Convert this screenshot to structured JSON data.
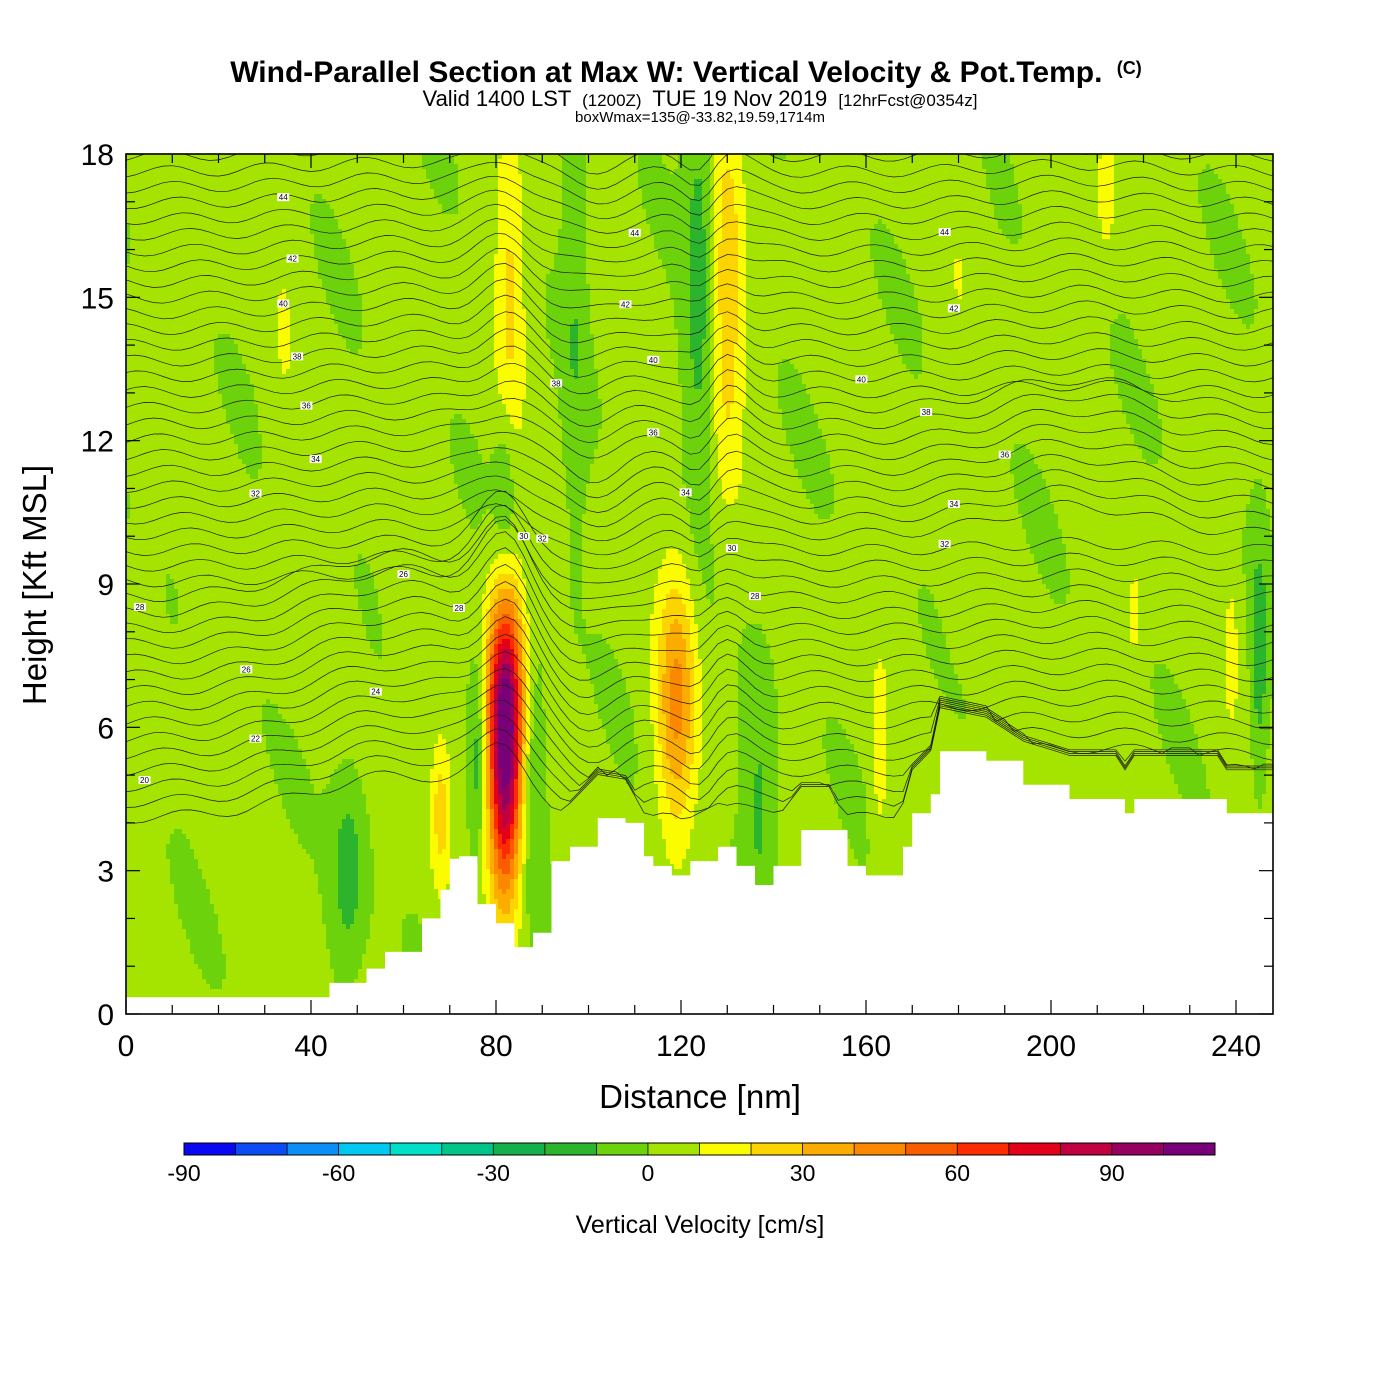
{
  "chart_data": {
    "type": "heatmap",
    "title": "Wind-Parallel Section at Max W: Vertical Velocity & Pot.Temp.",
    "title_mark": "(C)",
    "subtitle_parts": [
      "Valid 1400 LST",
      "(1200Z)",
      "TUE 19 Nov 2019",
      "[12hrFcst@0354z]"
    ],
    "subtitle2": "boxWmax=135@-33.82,19.59,1714m",
    "xlabel": "Distance [nm]",
    "ylabel": "Height [Kft MSL]",
    "xlim": [
      0,
      248
    ],
    "ylim": [
      0,
      18
    ],
    "x_ticks": [
      0,
      40,
      80,
      120,
      160,
      200,
      240
    ],
    "y_ticks": [
      0,
      3,
      6,
      9,
      12,
      15,
      18
    ],
    "colorbar": {
      "title": "Vertical Velocity [cm/s]",
      "levels": [
        -90,
        -80,
        -70,
        -60,
        -50,
        -40,
        -30,
        -20,
        -10,
        0,
        10,
        20,
        30,
        40,
        50,
        60,
        70,
        80,
        90,
        100,
        110
      ],
      "tick_labels": [
        "-90",
        "-60",
        "-30",
        "0",
        "30",
        "60",
        "90"
      ],
      "tick_values": [
        -90,
        -60,
        -30,
        0,
        30,
        60,
        90
      ],
      "colors": [
        "#0a08f0",
        "#0c4cf5",
        "#0b8ff4",
        "#00c8f0",
        "#00e0c8",
        "#00c488",
        "#13b04c",
        "#2cb42c",
        "#6cd20c",
        "#a4e400",
        "#fcfc00",
        "#fcd400",
        "#fcac00",
        "#fc8800",
        "#fc5c00",
        "#fc2c00",
        "#e40018",
        "#c00040",
        "#960060",
        "#780078"
      ]
    },
    "terrain_kft": [
      [
        0,
        0.35
      ],
      [
        40,
        0.35
      ],
      [
        43,
        0.35
      ],
      [
        44,
        0.65
      ],
      [
        52,
        0.95
      ],
      [
        56,
        1.3
      ],
      [
        64,
        2.0
      ],
      [
        68,
        2.6
      ],
      [
        70,
        3.25
      ],
      [
        72,
        3.3
      ],
      [
        76,
        2.3
      ],
      [
        80,
        1.9
      ],
      [
        84,
        1.4
      ],
      [
        88,
        1.7
      ],
      [
        92,
        3.2
      ],
      [
        96,
        3.5
      ],
      [
        102,
        4.1
      ],
      [
        108,
        4.0
      ],
      [
        112,
        3.3
      ],
      [
        114,
        3.1
      ],
      [
        118,
        2.9
      ],
      [
        122,
        3.2
      ],
      [
        128,
        3.5
      ],
      [
        132,
        3.1
      ],
      [
        136,
        2.7
      ],
      [
        140,
        3.1
      ],
      [
        146,
        3.85
      ],
      [
        152,
        3.85
      ],
      [
        156,
        3.1
      ],
      [
        160,
        2.9
      ],
      [
        164,
        2.9
      ],
      [
        168,
        3.5
      ],
      [
        170,
        4.2
      ],
      [
        174,
        4.6
      ],
      [
        176,
        5.5
      ],
      [
        186,
        5.3
      ],
      [
        194,
        4.8
      ],
      [
        204,
        4.5
      ],
      [
        214,
        4.5
      ],
      [
        216,
        4.2
      ],
      [
        218,
        4.5
      ],
      [
        236,
        4.5
      ],
      [
        238,
        4.2
      ],
      [
        248,
        4.2
      ]
    ],
    "vertical_velocity_features": [
      {
        "x": 82,
        "y": 5.3,
        "sx": 2.6,
        "sy": 2.0,
        "w": 100
      },
      {
        "x": 82,
        "y": 7.2,
        "sx": 3.2,
        "sy": 1.4,
        "w": 30
      },
      {
        "x": 119,
        "y": 6.5,
        "sx": 3.0,
        "sy": 1.9,
        "w": 40
      },
      {
        "x": 130,
        "y": 15.0,
        "sx": 2.6,
        "sy": 2.8,
        "w": 25
      },
      {
        "x": 83,
        "y": 15.0,
        "sx": 2.3,
        "sy": 2.4,
        "w": 20
      },
      {
        "x": 68,
        "y": 4.2,
        "sx": 1.6,
        "sy": 1.2,
        "w": 22
      },
      {
        "x": 163,
        "y": 5.5,
        "sx": 1.2,
        "sy": 1.5,
        "w": 14
      },
      {
        "x": 212,
        "y": 17.3,
        "sx": 1.6,
        "sy": 1.1,
        "w": 14
      },
      {
        "x": 218,
        "y": 8.3,
        "sx": 0.9,
        "sy": 0.9,
        "w": 12
      },
      {
        "x": 239,
        "y": 7.5,
        "sx": 0.9,
        "sy": 1.0,
        "w": 14
      },
      {
        "x": 76,
        "y": 5.5,
        "sx": 1.4,
        "sy": 1.6,
        "w": -20
      },
      {
        "x": 88,
        "y": 5.0,
        "sx": 1.8,
        "sy": 2.0,
        "w": -16
      },
      {
        "x": 48,
        "y": 3.0,
        "sx": 2.6,
        "sy": 1.4,
        "w": -18
      },
      {
        "x": 124,
        "y": 15.5,
        "sx": 2.2,
        "sy": 3.2,
        "w": -18
      },
      {
        "x": 137,
        "y": 4.5,
        "sx": 2.3,
        "sy": 1.8,
        "w": -14
      },
      {
        "x": 82,
        "y": 11.0,
        "sx": 1.8,
        "sy": 1.3,
        "w": -14
      },
      {
        "x": 245,
        "y": 7.5,
        "sx": 1.3,
        "sy": 1.6,
        "w": -20
      },
      {
        "x": 97,
        "y": 14.5,
        "sx": 1.8,
        "sy": 3.0,
        "w": -10
      },
      {
        "x": 58,
        "y": 13.0,
        "sx": 2.4,
        "sy": 3.2,
        "w": 6
      },
      {
        "x": 34,
        "y": 14.0,
        "sx": 2.4,
        "sy": 3.2,
        "w": 6
      },
      {
        "x": 180,
        "y": 14.0,
        "sx": 3.0,
        "sy": 3.5,
        "w": 6
      },
      {
        "x": 5,
        "y": 11.0,
        "sx": 2.0,
        "sy": 2.5,
        "w": 5
      }
    ],
    "theta_contours": [
      {
        "label": "20",
        "h0": 4.9,
        "lx": 4
      },
      {
        "label": "22",
        "h0": 5.4,
        "lx": 28
      },
      {
        "label": "24",
        "h0": 5.9,
        "lx": 54
      },
      {
        "label": "26",
        "h0": 6.9,
        "lx": 26
      },
      {
        "label": "26",
        "h0": 8.2,
        "lx": 60
      },
      {
        "label": "28",
        "h0": 8.5,
        "lx": 3
      },
      {
        "label": "28",
        "h0": 7.7,
        "lx": 72
      },
      {
        "label": "28",
        "h0": 8.7,
        "lx": 136
      },
      {
        "label": "30",
        "h0": 9.2,
        "lx": 86
      },
      {
        "label": "30",
        "h0": 9.5,
        "lx": 131
      },
      {
        "label": "32",
        "h0": 10.8,
        "lx": 28
      },
      {
        "label": "32",
        "h0": 9.8,
        "lx": 90
      },
      {
        "label": "32",
        "h0": 9.8,
        "lx": 177
      },
      {
        "label": "34",
        "h0": 11.6,
        "lx": 41
      },
      {
        "label": "34",
        "h0": 11.1,
        "lx": 121
      },
      {
        "label": "34",
        "h0": 10.4,
        "lx": 179
      },
      {
        "label": "36",
        "h0": 12.7,
        "lx": 39
      },
      {
        "label": "36",
        "h0": 12.1,
        "lx": 114
      },
      {
        "label": "36",
        "h0": 11.4,
        "lx": 190
      },
      {
        "label": "38",
        "h0": 13.7,
        "lx": 37
      },
      {
        "label": "38",
        "h0": 13.3,
        "lx": 93
      },
      {
        "label": "38",
        "h0": 12.4,
        "lx": 173
      },
      {
        "label": "40",
        "h0": 14.8,
        "lx": 34
      },
      {
        "label": "40",
        "h0": 13.8,
        "lx": 114
      },
      {
        "label": "40",
        "h0": 13.4,
        "lx": 159
      },
      {
        "label": "42",
        "h0": 15.6,
        "lx": 36
      },
      {
        "label": "42",
        "h0": 15.0,
        "lx": 108
      },
      {
        "label": "42",
        "h0": 14.8,
        "lx": 179
      },
      {
        "label": "44",
        "h0": 16.9,
        "lx": 34
      },
      {
        "label": "44",
        "h0": 16.5,
        "lx": 110
      },
      {
        "label": "44",
        "h0": 16.3,
        "lx": 177
      }
    ]
  }
}
